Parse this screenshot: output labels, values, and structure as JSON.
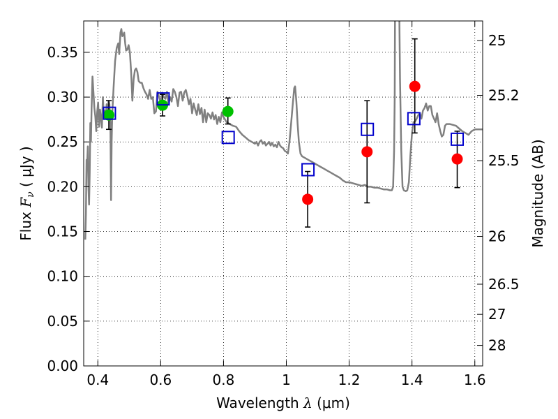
{
  "chart_data": {
    "type": "scatter",
    "xlabel_text": "Wavelength ",
    "xlabel_symbol": "λ",
    "xlabel_unit": " (μm)",
    "ylabel_text": "Flux ",
    "ylabel_symbol": "F",
    "ylabel_sub": "ν",
    "ylabel_unit": " ( μJy )",
    "y2label": "Magnitude (AB)",
    "xlim": [
      0.355,
      1.625
    ],
    "ylim": [
      0.0,
      0.385
    ],
    "x_ticks": [
      0.4,
      0.6,
      0.8,
      1.0,
      1.2,
      1.4,
      1.6
    ],
    "x_tick_labels": [
      "0.4",
      "0.6",
      "0.8",
      "1",
      "1.2",
      "1.4",
      "1.6"
    ],
    "y_ticks": [
      0.0,
      0.05,
      0.1,
      0.15,
      0.2,
      0.25,
      0.3,
      0.35
    ],
    "y_tick_labels": [
      "0.00",
      "0.05",
      "0.10",
      "0.15",
      "0.20",
      "0.25",
      "0.30",
      "0.35"
    ],
    "mag_ticks": [
      25,
      25.2,
      25.5,
      26,
      26.5,
      27,
      28
    ],
    "mag_tick_labels": [
      "25",
      "25.2",
      "25.5",
      "26",
      "26.5",
      "27",
      "28"
    ],
    "grid": true,
    "colors": {
      "template": "#808080",
      "observed_optical": "#00c000",
      "observed_nir": "#ff0000",
      "model_box": "#0000cc",
      "errorbar": "#000000"
    },
    "series": [
      {
        "kind": "line",
        "points": [
          [
            0.36,
            0.141
          ],
          [
            0.362,
            0.17
          ],
          [
            0.364,
            0.23
          ],
          [
            0.366,
            0.227
          ],
          [
            0.368,
            0.245
          ],
          [
            0.37,
            0.2
          ],
          [
            0.372,
            0.18
          ],
          [
            0.374,
            0.215
          ],
          [
            0.376,
            0.271
          ],
          [
            0.378,
            0.25
          ],
          [
            0.38,
            0.287
          ],
          [
            0.383,
            0.323
          ],
          [
            0.386,
            0.305
          ],
          [
            0.389,
            0.288
          ],
          [
            0.392,
            0.278
          ],
          [
            0.395,
            0.262
          ],
          [
            0.398,
            0.284
          ],
          [
            0.401,
            0.294
          ],
          [
            0.404,
            0.267
          ],
          [
            0.407,
            0.286
          ],
          [
            0.41,
            0.276
          ],
          [
            0.413,
            0.266
          ],
          [
            0.416,
            0.3
          ],
          [
            0.419,
            0.28
          ],
          [
            0.422,
            0.285
          ],
          [
            0.425,
            0.278
          ],
          [
            0.428,
            0.292
          ],
          [
            0.431,
            0.276
          ],
          [
            0.434,
            0.296
          ],
          [
            0.437,
            0.292
          ],
          [
            0.44,
            0.27
          ],
          [
            0.442,
            0.185
          ],
          [
            0.444,
            0.252
          ],
          [
            0.446,
            0.282
          ],
          [
            0.45,
            0.31
          ],
          [
            0.455,
            0.34
          ],
          [
            0.46,
            0.355
          ],
          [
            0.465,
            0.36
          ],
          [
            0.468,
            0.348
          ],
          [
            0.472,
            0.372
          ],
          [
            0.475,
            0.376
          ],
          [
            0.478,
            0.368
          ],
          [
            0.481,
            0.369
          ],
          [
            0.484,
            0.372
          ],
          [
            0.487,
            0.36
          ],
          [
            0.49,
            0.352
          ],
          [
            0.494,
            0.353
          ],
          [
            0.498,
            0.358
          ],
          [
            0.502,
            0.35
          ],
          [
            0.506,
            0.328
          ],
          [
            0.51,
            0.296
          ],
          [
            0.514,
            0.32
          ],
          [
            0.518,
            0.33
          ],
          [
            0.522,
            0.332
          ],
          [
            0.526,
            0.328
          ],
          [
            0.53,
            0.318
          ],
          [
            0.535,
            0.316
          ],
          [
            0.54,
            0.316
          ],
          [
            0.545,
            0.31
          ],
          [
            0.55,
            0.306
          ],
          [
            0.555,
            0.303
          ],
          [
            0.56,
            0.298
          ],
          [
            0.565,
            0.308
          ],
          [
            0.57,
            0.298
          ],
          [
            0.575,
            0.3
          ],
          [
            0.58,
            0.282
          ],
          [
            0.585,
            0.284
          ],
          [
            0.59,
            0.306
          ],
          [
            0.595,
            0.3
          ],
          [
            0.6,
            0.294
          ],
          [
            0.605,
            0.305
          ],
          [
            0.61,
            0.3
          ],
          [
            0.615,
            0.298
          ],
          [
            0.62,
            0.306
          ],
          [
            0.625,
            0.292
          ],
          [
            0.63,
            0.3
          ],
          [
            0.635,
            0.295
          ],
          [
            0.64,
            0.309
          ],
          [
            0.645,
            0.306
          ],
          [
            0.65,
            0.3
          ],
          [
            0.655,
            0.29
          ],
          [
            0.66,
            0.305
          ],
          [
            0.665,
            0.306
          ],
          [
            0.67,
            0.296
          ],
          [
            0.675,
            0.305
          ],
          [
            0.68,
            0.308
          ],
          [
            0.685,
            0.301
          ],
          [
            0.69,
            0.292
          ],
          [
            0.695,
            0.298
          ],
          [
            0.7,
            0.282
          ],
          [
            0.705,
            0.293
          ],
          [
            0.71,
            0.286
          ],
          [
            0.715,
            0.28
          ],
          [
            0.72,
            0.292
          ],
          [
            0.725,
            0.281
          ],
          [
            0.73,
            0.288
          ],
          [
            0.735,
            0.272
          ],
          [
            0.74,
            0.286
          ],
          [
            0.745,
            0.272
          ],
          [
            0.75,
            0.282
          ],
          [
            0.755,
            0.28
          ],
          [
            0.76,
            0.276
          ],
          [
            0.765,
            0.283
          ],
          [
            0.77,
            0.275
          ],
          [
            0.775,
            0.28
          ],
          [
            0.78,
            0.27
          ],
          [
            0.785,
            0.278
          ],
          [
            0.79,
            0.272
          ],
          [
            0.795,
            0.283
          ],
          [
            0.8,
            0.278
          ],
          [
            0.81,
            0.272
          ],
          [
            0.82,
            0.27
          ],
          [
            0.83,
            0.268
          ],
          [
            0.84,
            0.267
          ],
          [
            0.85,
            0.262
          ],
          [
            0.86,
            0.258
          ],
          [
            0.87,
            0.255
          ],
          [
            0.88,
            0.252
          ],
          [
            0.89,
            0.25
          ],
          [
            0.9,
            0.248
          ],
          [
            0.905,
            0.25
          ],
          [
            0.91,
            0.246
          ],
          [
            0.915,
            0.25
          ],
          [
            0.92,
            0.252
          ],
          [
            0.925,
            0.248
          ],
          [
            0.93,
            0.25
          ],
          [
            0.935,
            0.246
          ],
          [
            0.94,
            0.248
          ],
          [
            0.945,
            0.25
          ],
          [
            0.95,
            0.246
          ],
          [
            0.955,
            0.249
          ],
          [
            0.96,
            0.245
          ],
          [
            0.965,
            0.247
          ],
          [
            0.97,
            0.244
          ],
          [
            0.975,
            0.25
          ],
          [
            0.98,
            0.246
          ],
          [
            0.985,
            0.244
          ],
          [
            0.99,
            0.243
          ],
          [
            0.995,
            0.24
          ],
          [
            1.0,
            0.239
          ],
          [
            1.005,
            0.237
          ],
          [
            1.01,
            0.25
          ],
          [
            1.015,
            0.27
          ],
          [
            1.02,
            0.29
          ],
          [
            1.025,
            0.31
          ],
          [
            1.028,
            0.312
          ],
          [
            1.032,
            0.295
          ],
          [
            1.036,
            0.27
          ],
          [
            1.04,
            0.25
          ],
          [
            1.045,
            0.237
          ],
          [
            1.05,
            0.234
          ],
          [
            1.06,
            0.232
          ],
          [
            1.07,
            0.23
          ],
          [
            1.08,
            0.228
          ],
          [
            1.09,
            0.226
          ],
          [
            1.1,
            0.224
          ],
          [
            1.11,
            0.222
          ],
          [
            1.12,
            0.22
          ],
          [
            1.13,
            0.218
          ],
          [
            1.14,
            0.216
          ],
          [
            1.15,
            0.214
          ],
          [
            1.16,
            0.212
          ],
          [
            1.17,
            0.21
          ],
          [
            1.18,
            0.207
          ],
          [
            1.19,
            0.205
          ],
          [
            1.2,
            0.205
          ],
          [
            1.21,
            0.204
          ],
          [
            1.22,
            0.203
          ],
          [
            1.23,
            0.202
          ],
          [
            1.24,
            0.201
          ],
          [
            1.25,
            0.202
          ],
          [
            1.26,
            0.2
          ],
          [
            1.27,
            0.2
          ],
          [
            1.28,
            0.199
          ],
          [
            1.29,
            0.199
          ],
          [
            1.3,
            0.198
          ],
          [
            1.31,
            0.197
          ],
          [
            1.32,
            0.197
          ],
          [
            1.33,
            0.196
          ],
          [
            1.336,
            0.196
          ],
          [
            1.34,
            0.2
          ],
          [
            1.343,
            0.24
          ],
          [
            1.345,
            0.3
          ],
          [
            1.346,
            0.385
          ],
          null,
          [
            1.36,
            0.385
          ],
          [
            1.362,
            0.32
          ],
          [
            1.366,
            0.24
          ],
          [
            1.37,
            0.2
          ],
          [
            1.374,
            0.196
          ],
          [
            1.38,
            0.195
          ],
          [
            1.385,
            0.196
          ],
          [
            1.39,
            0.205
          ],
          [
            1.395,
            0.235
          ],
          [
            1.4,
            0.26
          ],
          [
            1.405,
            0.272
          ],
          [
            1.41,
            0.273
          ],
          [
            1.415,
            0.276
          ],
          [
            1.42,
            0.28
          ],
          [
            1.425,
            0.282
          ],
          [
            1.43,
            0.276
          ],
          [
            1.435,
            0.285
          ],
          [
            1.44,
            0.288
          ],
          [
            1.445,
            0.293
          ],
          [
            1.45,
            0.285
          ],
          [
            1.455,
            0.29
          ],
          [
            1.46,
            0.29
          ],
          [
            1.465,
            0.28
          ],
          [
            1.47,
            0.276
          ],
          [
            1.475,
            0.272
          ],
          [
            1.48,
            0.282
          ],
          [
            1.485,
            0.27
          ],
          [
            1.49,
            0.262
          ],
          [
            1.495,
            0.256
          ],
          [
            1.5,
            0.258
          ],
          [
            1.505,
            0.268
          ],
          [
            1.51,
            0.27
          ],
          [
            1.52,
            0.27
          ],
          [
            1.53,
            0.269
          ],
          [
            1.54,
            0.268
          ],
          [
            1.55,
            0.265
          ],
          [
            1.56,
            0.262
          ],
          [
            1.57,
            0.26
          ],
          [
            1.58,
            0.258
          ],
          [
            1.59,
            0.262
          ],
          [
            1.6,
            0.264
          ],
          [
            1.61,
            0.264
          ],
          [
            1.625,
            0.264
          ]
        ]
      },
      {
        "kind": "points-optical",
        "points": [
          {
            "x": 0.435,
            "y": 0.28,
            "yerr_low": 0.264,
            "yerr_high": 0.296
          },
          {
            "x": 0.606,
            "y": 0.291,
            "yerr_low": 0.279,
            "yerr_high": 0.303
          },
          {
            "x": 0.814,
            "y": 0.284,
            "yerr_low": 0.27,
            "yerr_high": 0.299
          }
        ]
      },
      {
        "kind": "points-nir",
        "points": [
          {
            "x": 1.068,
            "y": 0.186,
            "yerr_low": 0.155,
            "yerr_high": 0.217
          },
          {
            "x": 1.257,
            "y": 0.239,
            "yerr_low": 0.182,
            "yerr_high": 0.296
          },
          {
            "x": 1.409,
            "y": 0.312,
            "yerr_low": 0.26,
            "yerr_high": 0.365
          },
          {
            "x": 1.544,
            "y": 0.231,
            "yerr_low": 0.199,
            "yerr_high": 0.262
          }
        ]
      },
      {
        "kind": "model-boxes",
        "points": [
          {
            "x": 0.437,
            "y": 0.282
          },
          {
            "x": 0.608,
            "y": 0.298
          },
          {
            "x": 0.815,
            "y": 0.255
          },
          {
            "x": 1.069,
            "y": 0.219
          },
          {
            "x": 1.258,
            "y": 0.264
          },
          {
            "x": 1.406,
            "y": 0.276
          },
          {
            "x": 1.544,
            "y": 0.253
          }
        ]
      }
    ]
  }
}
